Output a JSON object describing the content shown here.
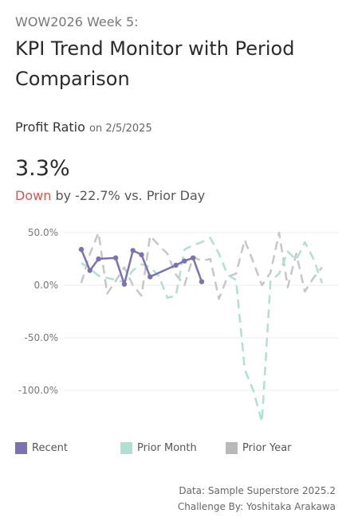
{
  "header": {
    "subtitle": "WOW2026 Week 5:",
    "title": "KPI Trend Monitor with Period Comparison"
  },
  "metric": {
    "name": "Profit Ratio",
    "date": "on 2/5/2025",
    "value": "3.3%",
    "direction": "Down",
    "change_text": "by -22.7% vs. Prior Day"
  },
  "legend": {
    "recent": "Recent",
    "prior_month": "Prior Month",
    "prior_year": "Prior Year"
  },
  "footer": {
    "line1": "Data: Sample Superstore 2025.2",
    "line2": "Challenge By: Yoshitaka Arakawa"
  },
  "colors": {
    "recent": "#7b72b0",
    "prior_month": "#b2dfd3",
    "prior_year": "#c4c6c8"
  },
  "chart_data": {
    "type": "line",
    "ylim": [
      -130,
      50
    ],
    "yticks": [
      50,
      0,
      -50,
      -100
    ],
    "ytick_labels": [
      "50.0%",
      "0.0%",
      "-50.0%",
      "-100.0%"
    ],
    "grid": true,
    "legend_position": "bottom",
    "series": [
      {
        "name": "Recent",
        "style": "solid-markers",
        "x": [
          1,
          2,
          3,
          5,
          6,
          7,
          8,
          9,
          12,
          13,
          14,
          15
        ],
        "values": [
          34,
          14,
          25,
          26,
          1,
          33,
          29,
          8,
          19,
          23,
          26,
          3.3
        ]
      },
      {
        "name": "Prior Month",
        "style": "dashed",
        "x": [
          1,
          2,
          3,
          4,
          5,
          6,
          7,
          8,
          9,
          10,
          11,
          12,
          13,
          14,
          15,
          16,
          17,
          18,
          19,
          20,
          21,
          22,
          23,
          24,
          25,
          26,
          27,
          28,
          29
        ],
        "values": [
          21,
          16,
          9,
          7,
          5,
          3,
          14,
          20,
          17,
          9,
          -12,
          -10,
          34,
          38,
          41,
          45,
          30,
          10,
          5,
          -80,
          -100,
          -130,
          4,
          11,
          32,
          24,
          41,
          25,
          2
        ]
      },
      {
        "name": "Prior Year",
        "style": "dashed",
        "x": [
          1,
          2,
          3,
          4,
          5,
          6,
          7,
          8,
          9,
          10,
          11,
          12,
          13,
          14,
          15,
          16,
          17,
          18,
          19,
          20,
          21,
          22,
          23,
          24,
          25,
          26,
          27,
          28,
          29
        ],
        "values": [
          2,
          30,
          50,
          -8,
          4,
          17,
          0,
          -10,
          47,
          38,
          30,
          10,
          0,
          27,
          23,
          25,
          -13,
          8,
          11,
          43,
          22,
          0,
          12,
          50,
          -2,
          30,
          -6,
          7,
          17
        ]
      }
    ]
  }
}
